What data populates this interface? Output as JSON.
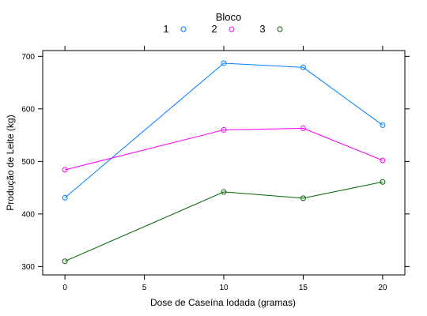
{
  "chart_data": {
    "type": "line",
    "title": "",
    "xlabel": "Dose de Caseína Iodada (gramas)",
    "ylabel": "Produção de Leite (kg)",
    "xlim": [
      -1.4,
      21.4
    ],
    "ylim": [
      284,
      711
    ],
    "x": [
      0,
      10,
      15,
      20
    ],
    "xticks": [
      0,
      5,
      10,
      15,
      20
    ],
    "yticks": [
      300,
      400,
      500,
      600,
      700
    ],
    "grid": false,
    "legend": {
      "title": "Bloco",
      "placement": "top-center"
    },
    "series": [
      {
        "name": "1",
        "color": "#0080ff",
        "values": [
          431,
          687,
          679,
          569
        ]
      },
      {
        "name": "2",
        "color": "#ff00ff",
        "values": [
          484,
          560,
          563,
          502
        ]
      },
      {
        "name": "3",
        "color": "#006400",
        "values": [
          310,
          442,
          430,
          461
        ]
      }
    ]
  }
}
